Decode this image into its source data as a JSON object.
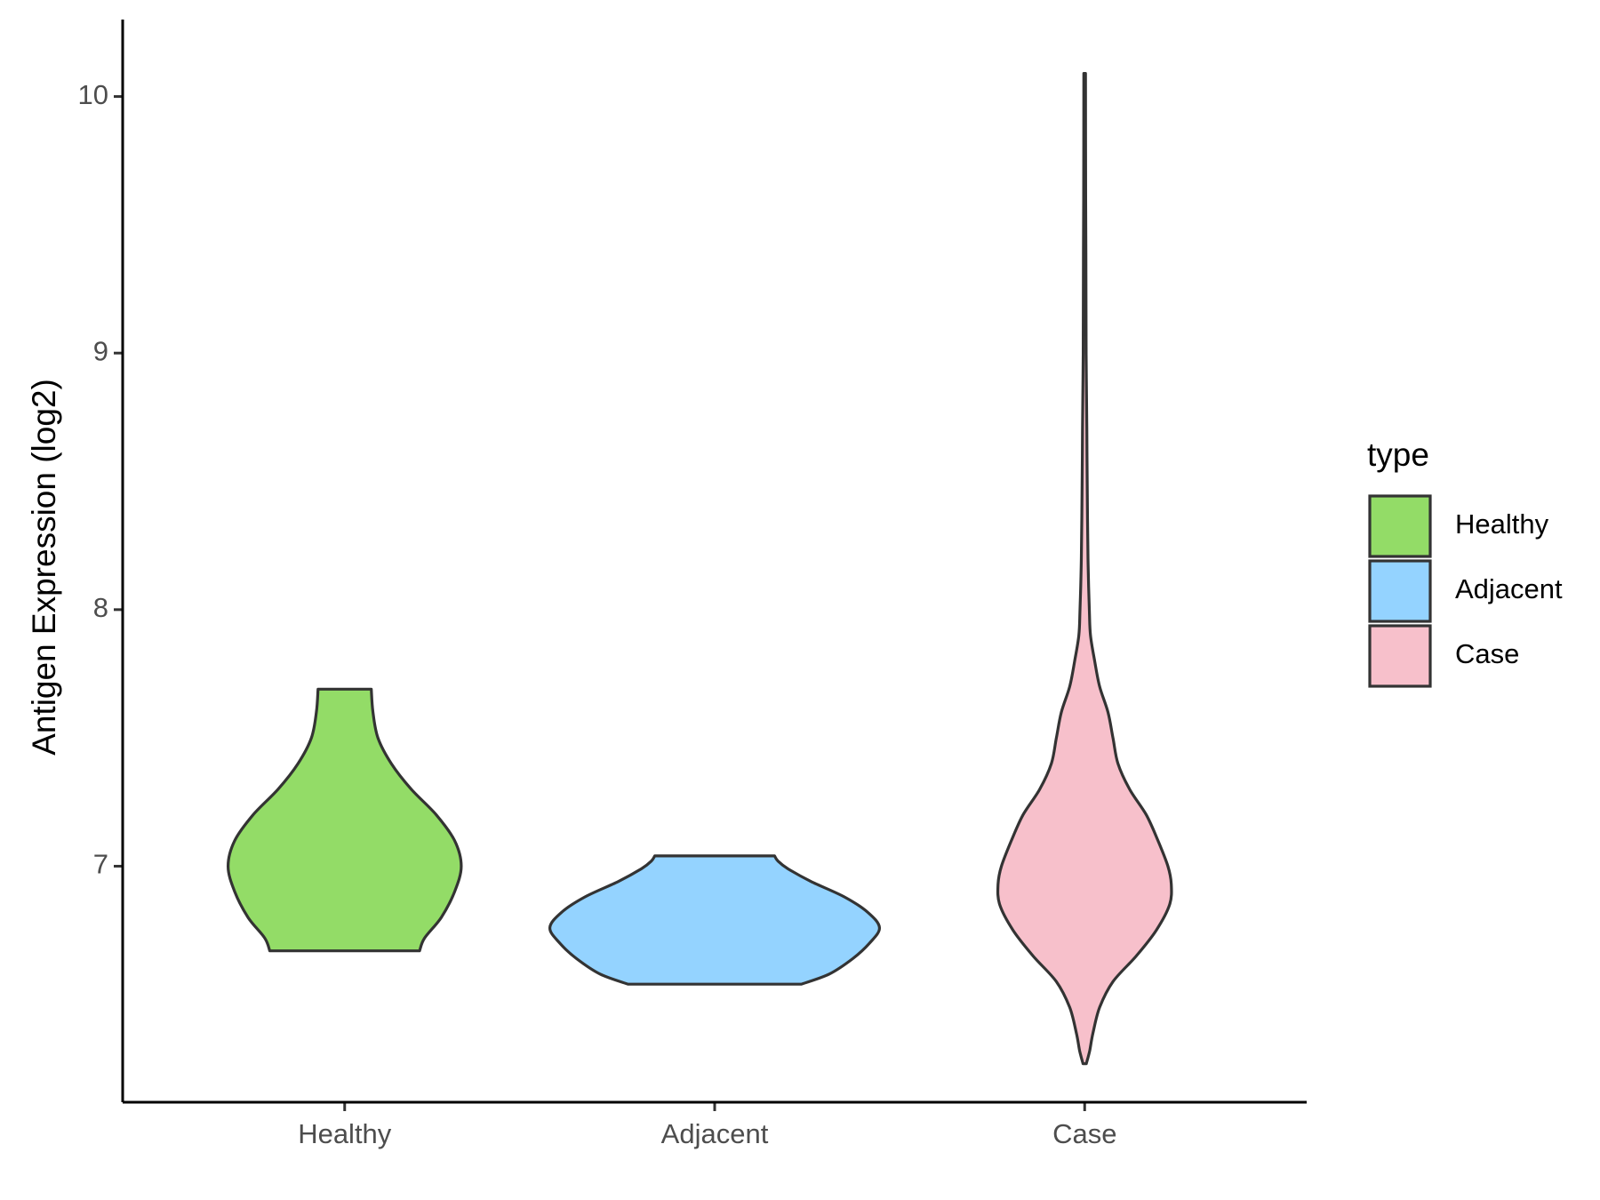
{
  "chart_data": {
    "type": "violin",
    "title": "",
    "xlabel": "",
    "ylabel": "Antigen Expression (log2)",
    "ylim": [
      6.08,
      10.3
    ],
    "yticks": [
      7,
      8,
      9,
      10
    ],
    "grid": false,
    "categories": [
      "Healthy",
      "Adjacent",
      "Case"
    ],
    "legend": {
      "title": "type",
      "placement": "right",
      "entries": [
        "Healthy",
        "Adjacent",
        "Case"
      ]
    },
    "series": [
      {
        "name": "Healthy",
        "color": "#93dc67",
        "min": 6.67,
        "max": 7.69,
        "profile": [
          [
            6.67,
            0.45
          ],
          [
            6.72,
            0.48
          ],
          [
            6.8,
            0.58
          ],
          [
            6.9,
            0.66
          ],
          [
            7.0,
            0.7
          ],
          [
            7.1,
            0.66
          ],
          [
            7.2,
            0.55
          ],
          [
            7.3,
            0.4
          ],
          [
            7.4,
            0.28
          ],
          [
            7.5,
            0.2
          ],
          [
            7.6,
            0.17
          ],
          [
            7.69,
            0.16
          ]
        ]
      },
      {
        "name": "Adjacent",
        "color": "#94d3ff",
        "min": 6.54,
        "max": 7.04,
        "profile": [
          [
            6.54,
            0.52
          ],
          [
            6.58,
            0.69
          ],
          [
            6.64,
            0.83
          ],
          [
            6.7,
            0.93
          ],
          [
            6.76,
            0.99
          ],
          [
            6.82,
            0.92
          ],
          [
            6.88,
            0.78
          ],
          [
            6.94,
            0.58
          ],
          [
            6.99,
            0.44
          ],
          [
            7.02,
            0.38
          ],
          [
            7.04,
            0.36
          ]
        ]
      },
      {
        "name": "Case",
        "color": "#f7c0cb",
        "min": 6.23,
        "max": 10.09,
        "profile": [
          [
            6.23,
            0.01
          ],
          [
            6.28,
            0.03
          ],
          [
            6.35,
            0.05
          ],
          [
            6.45,
            0.09
          ],
          [
            6.55,
            0.17
          ],
          [
            6.65,
            0.31
          ],
          [
            6.75,
            0.43
          ],
          [
            6.85,
            0.51
          ],
          [
            6.93,
            0.52
          ],
          [
            7.0,
            0.5
          ],
          [
            7.1,
            0.44
          ],
          [
            7.2,
            0.37
          ],
          [
            7.3,
            0.27
          ],
          [
            7.4,
            0.2
          ],
          [
            7.5,
            0.17
          ],
          [
            7.6,
            0.14
          ],
          [
            7.7,
            0.09
          ],
          [
            7.8,
            0.06
          ],
          [
            7.9,
            0.035
          ],
          [
            8.0,
            0.028
          ],
          [
            8.2,
            0.02
          ],
          [
            8.5,
            0.015
          ],
          [
            8.7,
            0.013
          ],
          [
            9.0,
            0.009
          ],
          [
            9.3,
            0.008
          ],
          [
            9.6,
            0.006
          ],
          [
            10.09,
            0.005
          ]
        ]
      }
    ]
  }
}
